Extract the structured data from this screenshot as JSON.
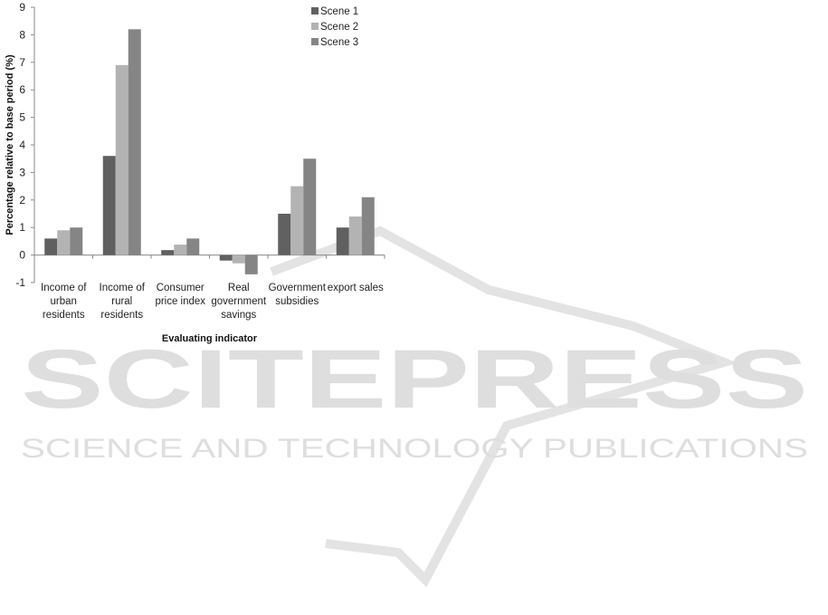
{
  "chart_data": {
    "type": "bar",
    "title": "",
    "xlabel": "Evaluating indicator",
    "ylabel": "Percentage relative to base period (%)",
    "ylim": [
      -1,
      9
    ],
    "yticks": [
      -1,
      0,
      1,
      2,
      3,
      4,
      5,
      6,
      7,
      8,
      9
    ],
    "grid": false,
    "legend_position": "top-right",
    "categories": [
      [
        "Income of",
        "urban",
        "residents"
      ],
      [
        "Income of",
        "rural",
        "residents"
      ],
      [
        "Consumer",
        "price index"
      ],
      [
        "Real",
        "government",
        "savings"
      ],
      [
        "Government",
        "subsidies"
      ],
      [
        "export sales"
      ]
    ],
    "series": [
      {
        "name": "Scene 1",
        "color": "#606060",
        "values": [
          0.6,
          3.6,
          0.18,
          -0.2,
          1.5,
          1.0
        ]
      },
      {
        "name": "Scene 2",
        "color": "#b3b3b3",
        "values": [
          0.9,
          6.9,
          0.38,
          -0.3,
          2.5,
          1.4
        ]
      },
      {
        "name": "Scene 3",
        "color": "#858585",
        "values": [
          1.0,
          8.2,
          0.6,
          -0.7,
          3.5,
          2.1
        ]
      }
    ]
  },
  "watermark": {
    "title": "SCITEPRESS",
    "subtitle": "SCIENCE AND TECHNOLOGY PUBLICATIONS",
    "color": "#d9d9d9"
  }
}
